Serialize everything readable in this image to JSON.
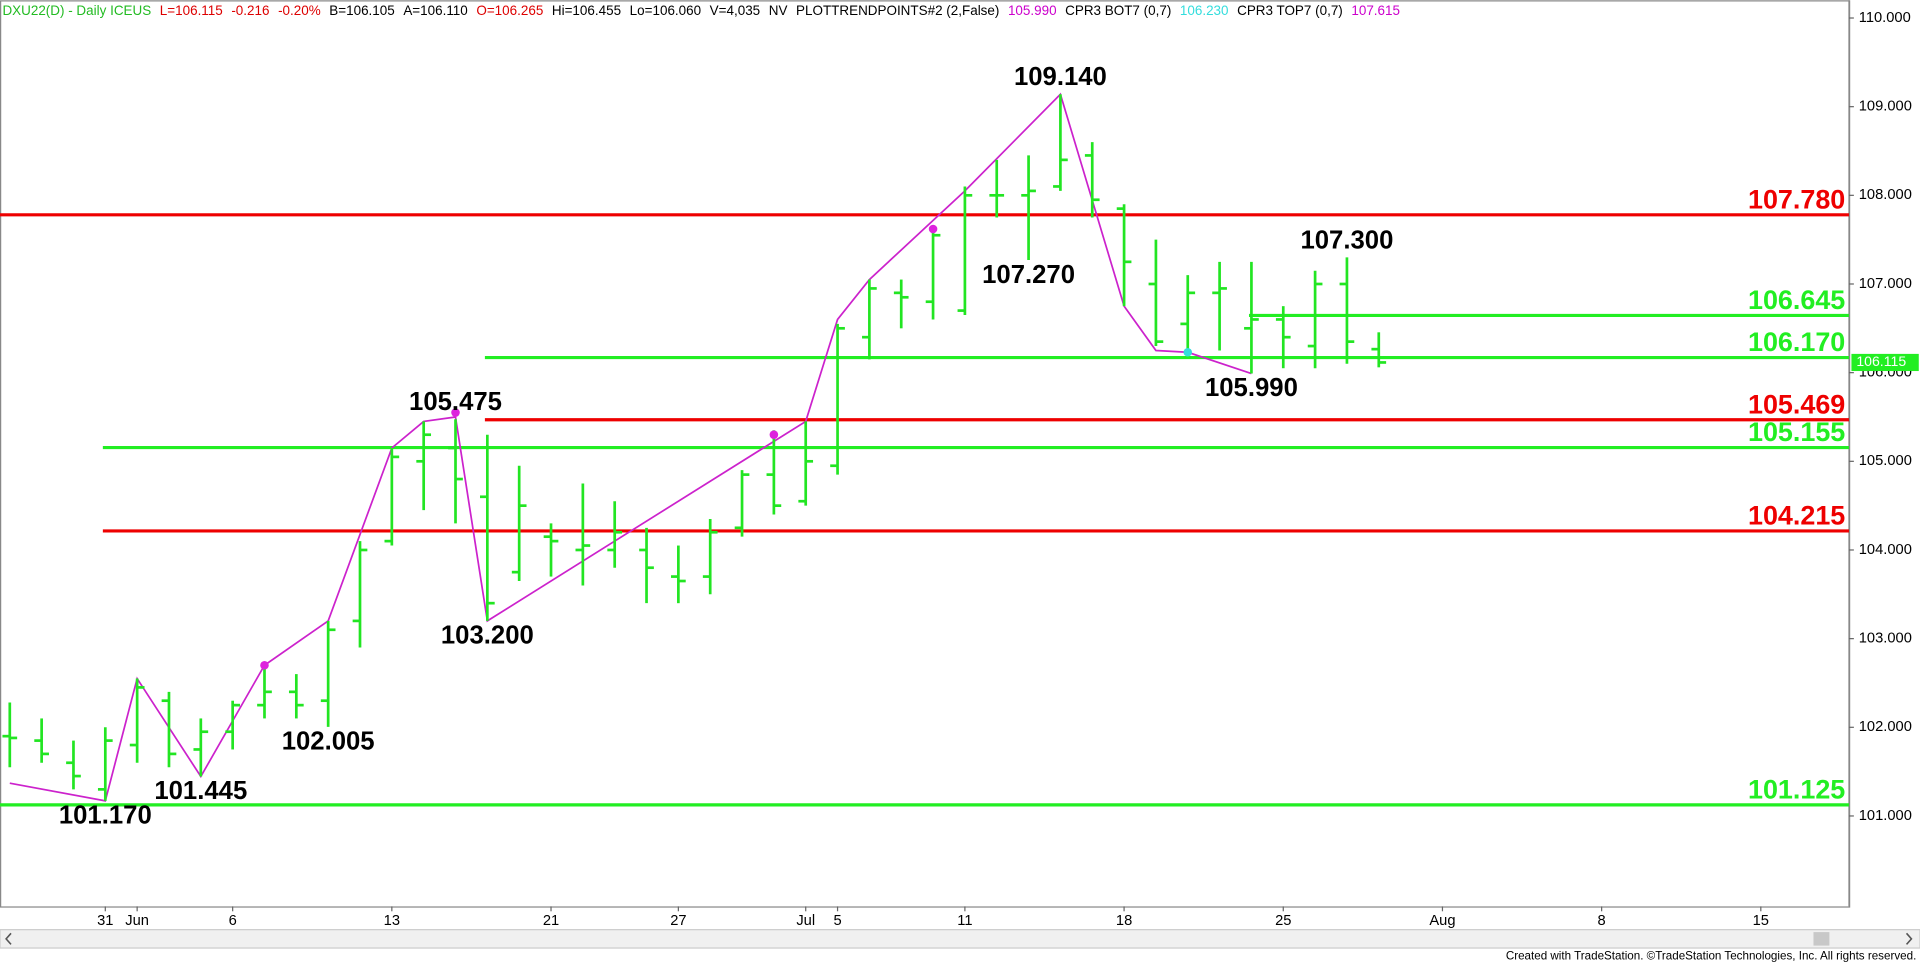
{
  "chart_data": {
    "type": "ohlc",
    "header": [
      {
        "text": "DXU22(D) - Daily  ICEUS",
        "color": "#22bb22"
      },
      {
        "text": "L=106.115",
        "color": "#dd0000"
      },
      {
        "text": "-0.216",
        "color": "#dd0000"
      },
      {
        "text": "-0.20%",
        "color": "#dd0000"
      },
      {
        "text": "B=106.105",
        "color": "#000000"
      },
      {
        "text": "A=106.110",
        "color": "#000000"
      },
      {
        "text": "O=106.265",
        "color": "#dd0000"
      },
      {
        "text": "Hi=106.455",
        "color": "#000000"
      },
      {
        "text": "Lo=106.060",
        "color": "#000000"
      },
      {
        "text": "V=4,035",
        "color": "#000000"
      },
      {
        "text": "NV",
        "color": "#000000"
      },
      {
        "text": "PLOTTRENDPOINTS#2 (2,False)",
        "color": "#000000"
      },
      {
        "text": "105.990",
        "color": "#cc00cc"
      },
      {
        "text": "CPR3 BOT7 (0,7)",
        "color": "#000000"
      },
      {
        "text": "106.230",
        "color": "#33dddd"
      },
      {
        "text": "CPR3 TOP7 (0,7)",
        "color": "#000000"
      },
      {
        "text": "107.615",
        "color": "#cc00cc"
      }
    ],
    "categories": [
      "May 25",
      "May 26",
      "May 27",
      "May 31",
      "Jun 1",
      "Jun 2",
      "Jun 3",
      "Jun 6",
      "Jun 7",
      "Jun 8",
      "Jun 9",
      "Jun 10",
      "Jun 13",
      "Jun 14",
      "Jun 15",
      "Jun 16",
      "Jun 17",
      "Jun 21",
      "Jun 22",
      "Jun 23",
      "Jun 24",
      "Jun 27",
      "Jun 28",
      "Jun 29",
      "Jun 30",
      "Jul 1",
      "Jul 5",
      "Jul 6",
      "Jul 7",
      "Jul 8",
      "Jul 11",
      "Jul 12",
      "Jul 13",
      "Jul 14",
      "Jul 15",
      "Jul 18",
      "Jul 19",
      "Jul 20",
      "Jul 21",
      "Jul 22",
      "Jul 25",
      "Jul 26",
      "Jul 27",
      "Jul 28",
      "Jul 29",
      "Aug 1",
      "Aug 2",
      "Aug 3",
      "Aug 4",
      "Aug 5",
      "Aug 8",
      "Aug 9",
      "Aug 10",
      "Aug 11",
      "Aug 12",
      "Aug 15",
      "Aug 16",
      "Aug 17"
    ],
    "bar_color": "#22e522",
    "open": [
      101.9,
      101.85,
      101.6,
      101.3,
      101.8,
      102.3,
      101.75,
      101.95,
      102.25,
      102.4,
      102.3,
      103.2,
      104.1,
      105.0,
      105.15,
      104.6,
      103.75,
      104.15,
      104.0,
      104.0,
      104.0,
      103.7,
      103.7,
      104.25,
      104.85,
      104.55,
      104.95,
      106.4,
      106.9,
      106.8,
      106.7,
      108.0,
      108.0,
      108.1,
      108.45,
      107.85,
      107.0,
      106.55,
      106.9,
      106.5,
      106.6,
      106.3,
      107.0,
      106.265,
      null,
      null,
      null,
      null,
      null,
      null,
      null,
      null,
      null,
      null,
      null,
      null,
      null,
      null
    ],
    "high": [
      102.28,
      102.1,
      101.85,
      102.0,
      102.55,
      102.4,
      102.1,
      102.3,
      102.7,
      102.6,
      103.2,
      104.1,
      105.15,
      105.45,
      105.475,
      105.3,
      104.95,
      104.3,
      104.75,
      104.55,
      104.25,
      104.05,
      104.35,
      104.9,
      105.35,
      105.45,
      106.55,
      107.05,
      107.05,
      107.6,
      108.1,
      108.4,
      108.45,
      109.14,
      108.6,
      107.9,
      107.5,
      107.1,
      107.25,
      107.25,
      106.75,
      107.15,
      107.3,
      106.455,
      null,
      null,
      null,
      null,
      null,
      null,
      null,
      null,
      null,
      null,
      null,
      null,
      null,
      null
    ],
    "low": [
      101.55,
      101.6,
      101.3,
      101.17,
      101.6,
      101.55,
      101.445,
      101.75,
      102.1,
      102.1,
      102.005,
      102.9,
      104.05,
      104.45,
      104.3,
      103.2,
      103.65,
      103.7,
      103.6,
      103.8,
      103.4,
      103.4,
      103.5,
      104.15,
      104.4,
      104.5,
      104.85,
      106.15,
      106.5,
      106.6,
      106.65,
      107.75,
      107.27,
      108.05,
      107.75,
      106.75,
      106.3,
      106.2,
      106.25,
      105.99,
      106.05,
      106.05,
      106.1,
      106.06,
      null,
      null,
      null,
      null,
      null,
      null,
      null,
      null,
      null,
      null,
      null,
      null,
      null,
      null
    ],
    "close": [
      101.88,
      101.7,
      101.45,
      101.85,
      102.45,
      101.7,
      101.95,
      102.25,
      102.4,
      102.25,
      103.1,
      104.0,
      105.05,
      105.3,
      104.8,
      103.4,
      104.5,
      104.1,
      104.05,
      104.2,
      103.8,
      103.65,
      104.2,
      104.85,
      104.5,
      105.0,
      106.5,
      106.95,
      106.85,
      107.55,
      108.0,
      108.0,
      108.05,
      108.4,
      107.95,
      107.25,
      106.35,
      106.9,
      106.95,
      106.6,
      106.4,
      107.0,
      106.35,
      106.115,
      null,
      null,
      null,
      null,
      null,
      null,
      null,
      null,
      null,
      null,
      null,
      null,
      null,
      null
    ],
    "trendline": {
      "color": "#cc22cc",
      "x": [
        "May 25",
        "May 31",
        "Jun 1",
        "Jun 3",
        "Jun 7",
        "Jun 9",
        "Jun 13",
        "Jun 14",
        "Jun 15",
        "Jun 16",
        "Jul 1",
        "Jul 5",
        "Jul 6",
        "Jul 11",
        "Jul 14",
        "Jul 18",
        "Jul 19",
        "Jul 20",
        "Jul 22"
      ],
      "values": [
        101.37,
        101.17,
        102.55,
        101.445,
        102.7,
        103.2,
        105.15,
        105.45,
        105.5,
        103.2,
        105.45,
        106.6,
        107.05,
        108.05,
        109.14,
        106.75,
        106.25,
        106.23,
        105.99
      ]
    },
    "markers": [
      {
        "x": "Jun 7",
        "value": 102.7,
        "color": "#dd22dd"
      },
      {
        "x": "Jun 15",
        "value": 105.55,
        "color": "#dd22dd"
      },
      {
        "x": "Jun 30",
        "value": 105.3,
        "color": "#dd22dd"
      },
      {
        "x": "Jul 8",
        "value": 107.62,
        "color": "#dd22dd"
      },
      {
        "x": "Jul 20",
        "value": 106.23,
        "color": "#33dddd"
      }
    ],
    "levels": [
      {
        "value": 107.78,
        "label": "107.780",
        "color": "#ee0000",
        "from": "May 25"
      },
      {
        "value": 106.645,
        "label": "106.645",
        "color": "#22ee22",
        "from": "Jul 22"
      },
      {
        "value": 106.17,
        "label": "106.170",
        "color": "#22ee22",
        "from": "Jun 16"
      },
      {
        "value": 105.469,
        "label": "105.469",
        "color": "#ee0000",
        "from": "Jun 16"
      },
      {
        "value": 105.155,
        "label": "105.155",
        "color": "#22ee22",
        "from": "May 31"
      },
      {
        "value": 104.215,
        "label": "104.215",
        "color": "#ee0000",
        "from": "May 31"
      },
      {
        "value": 101.125,
        "label": "101.125",
        "color": "#22ee22",
        "from": "May 25"
      }
    ],
    "annotations": [
      {
        "x": "Jul 14",
        "value": 109.14,
        "label": "109.140"
      },
      {
        "x": "Jul 13",
        "value": 107.27,
        "label": "107.270"
      },
      {
        "x": "Jul 27",
        "value": 107.3,
        "label": "107.300"
      },
      {
        "x": "Jul 22",
        "value": 105.99,
        "label": "105.990"
      },
      {
        "x": "Jun 15",
        "value": 105.475,
        "label": "105.475"
      },
      {
        "x": "Jun 16",
        "value": 103.2,
        "label": "103.200"
      },
      {
        "x": "Jun 9",
        "value": 102.005,
        "label": "102.005"
      },
      {
        "x": "Jun 3",
        "value": 101.445,
        "label": "101.445"
      },
      {
        "x": "May 31",
        "value": 101.17,
        "label": "101.170"
      }
    ],
    "ylim": [
      99.98,
      110.2
    ],
    "yticks": [
      {
        "value": 101,
        "label": "101.000"
      },
      {
        "value": 102,
        "label": "102.000"
      },
      {
        "value": 103,
        "label": "103.000"
      },
      {
        "value": 104,
        "label": "104.000"
      },
      {
        "value": 105,
        "label": "105.000"
      },
      {
        "value": 106,
        "label": "106.000"
      },
      {
        "value": 107,
        "label": "107.000"
      },
      {
        "value": 108,
        "label": "108.000"
      },
      {
        "value": 109,
        "label": "109.000"
      },
      {
        "value": 110,
        "label": "110.000"
      }
    ],
    "xticks": [
      {
        "value": "May 31",
        "label": "31"
      },
      {
        "value": "Jun 1",
        "label": "Jun"
      },
      {
        "value": "Jun 6",
        "label": "6"
      },
      {
        "value": "Jun 13",
        "label": "13"
      },
      {
        "value": "Jun 21",
        "label": "21"
      },
      {
        "value": "Jun 27",
        "label": "27"
      },
      {
        "value": "Jul 1",
        "label": "Jul"
      },
      {
        "value": "Jul 5",
        "label": "5"
      },
      {
        "value": "Jul 11",
        "label": "11"
      },
      {
        "value": "Jul 18",
        "label": "18"
      },
      {
        "value": "Jul 25",
        "label": "25"
      },
      {
        "value": "Aug 1",
        "label": "Aug"
      },
      {
        "value": "Aug 8",
        "label": "8"
      },
      {
        "value": "Aug 15",
        "label": "15"
      }
    ],
    "last_price_color": "#22ee22",
    "footer": "Created with TradeStation. ©TradeStation Technologies, Inc. All rights reserved."
  }
}
